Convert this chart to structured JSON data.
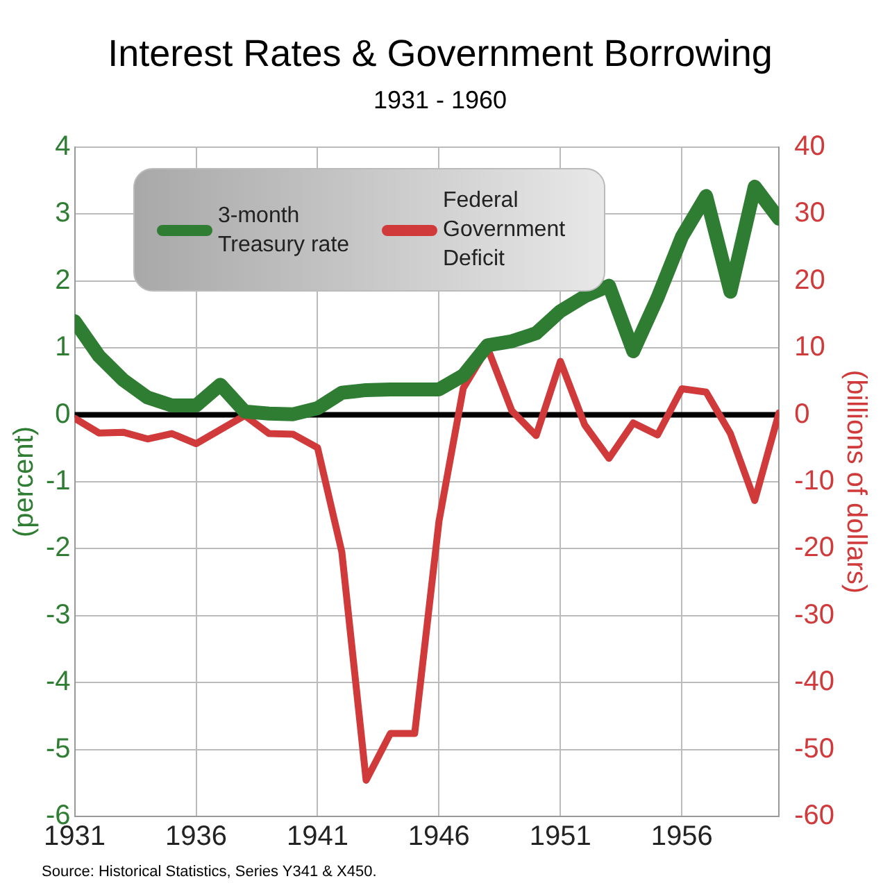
{
  "chart_data": {
    "type": "line",
    "title": "Interest Rates & Government Borrowing",
    "subtitle": "1931 - 1960",
    "ylabel": "(percent)",
    "y2label": "(billions of dollars)",
    "x": [
      1931,
      1932,
      1933,
      1934,
      1935,
      1936,
      1937,
      1938,
      1939,
      1940,
      1941,
      1942,
      1943,
      1944,
      1945,
      1946,
      1947,
      1948,
      1949,
      1950,
      1951,
      1952,
      1953,
      1954,
      1955,
      1956,
      1957,
      1958,
      1959,
      1960
    ],
    "series": [
      {
        "name": "3-month Treasury rate",
        "color": "#2e7d32",
        "values": [
          1.4,
          0.88,
          0.52,
          0.26,
          0.14,
          0.14,
          0.45,
          0.05,
          0.02,
          0.01,
          0.1,
          0.33,
          0.37,
          0.38,
          0.38,
          0.38,
          0.59,
          1.04,
          1.1,
          1.22,
          1.55,
          1.77,
          1.93,
          0.95,
          1.75,
          2.66,
          3.27,
          1.84,
          3.41,
          2.93
        ]
      },
      {
        "name": "Federal Government Deficit",
        "color": "#d03a3a",
        "axis": "y2",
        "values": [
          -0.5,
          -2.7,
          -2.6,
          -3.6,
          -2.8,
          -4.3,
          -2.2,
          -0.1,
          -2.8,
          -2.9,
          -4.9,
          -20.5,
          -54.6,
          -47.6,
          -47.6,
          -15.9,
          4,
          10,
          0.6,
          -3.1,
          8,
          -1.5,
          -6.5,
          -1.2,
          -3,
          3.9,
          3.4,
          -2.8,
          -12.8,
          0.3
        ]
      }
    ],
    "xlim": [
      1931,
      1960
    ],
    "xticks": [
      1931,
      1936,
      1941,
      1946,
      1951,
      1956
    ],
    "ylim": [
      -6,
      4
    ],
    "yticks": [
      -6,
      -5,
      -4,
      -3,
      -2,
      -1,
      0,
      1,
      2,
      3,
      4
    ],
    "y2lim": [
      -60,
      40
    ],
    "y2ticks": [
      -60,
      -50,
      -40,
      -30,
      -20,
      -10,
      0,
      10,
      20,
      30,
      40
    ],
    "ref_lines": [
      {
        "axis": "y",
        "value": 0,
        "color": "#000000"
      }
    ],
    "grid": true,
    "legend": "top left",
    "marker": "none",
    "line_style": "solid",
    "annotations": [
      "Source: Historical Statistics, Series Y341 & X450."
    ]
  }
}
